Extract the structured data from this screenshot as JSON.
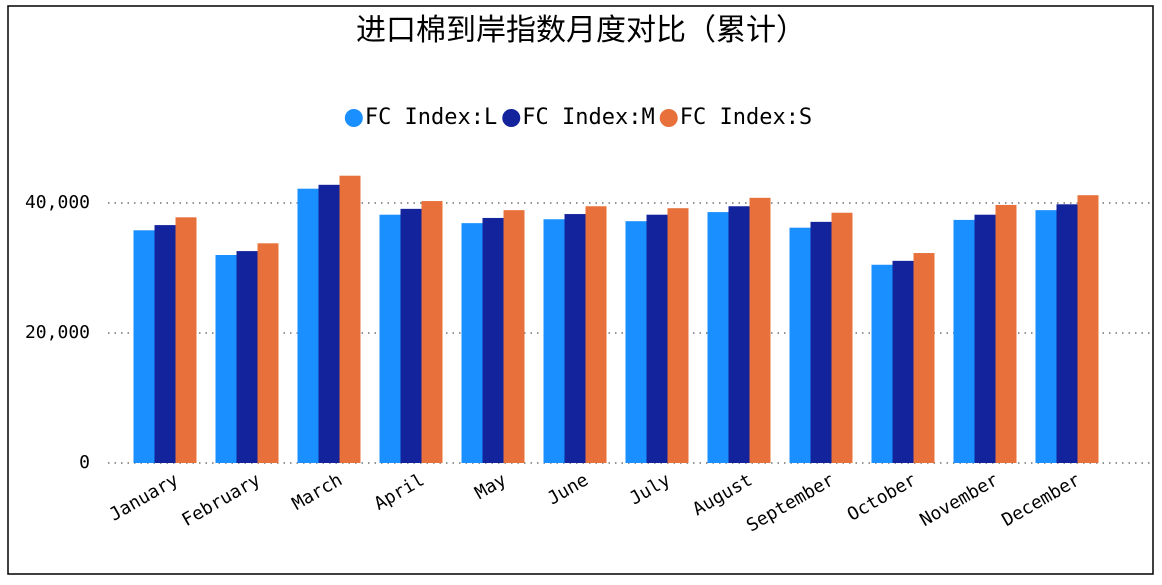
{
  "chart_data": {
    "type": "bar",
    "title": "进口棉到岸指数月度对比（累计）",
    "categories": [
      "January",
      "February",
      "March",
      "April",
      "May",
      "June",
      "July",
      "August",
      "September",
      "October",
      "November",
      "December"
    ],
    "series": [
      {
        "name": "FC Index:L",
        "color": "#1a8fff",
        "values": [
          35800,
          32000,
          42200,
          38200,
          36900,
          37500,
          37200,
          38600,
          36200,
          30500,
          37400,
          38900
        ]
      },
      {
        "name": "FC Index:M",
        "color": "#13239c",
        "values": [
          36600,
          32600,
          42800,
          39100,
          37700,
          38300,
          38200,
          39500,
          37100,
          31100,
          38200,
          39800
        ]
      },
      {
        "name": "FC Index:S",
        "color": "#e8703a",
        "values": [
          37800,
          33800,
          44200,
          40300,
          38900,
          39500,
          39200,
          40800,
          38500,
          32300,
          39700,
          41200
        ]
      }
    ],
    "ylim": [
      0,
      48000
    ],
    "yticks": [
      0,
      {
        "value": 20000,
        "label": "20,000"
      },
      {
        "value": 40000,
        "label": "40,000"
      }
    ],
    "grid": true,
    "legend": "top"
  }
}
